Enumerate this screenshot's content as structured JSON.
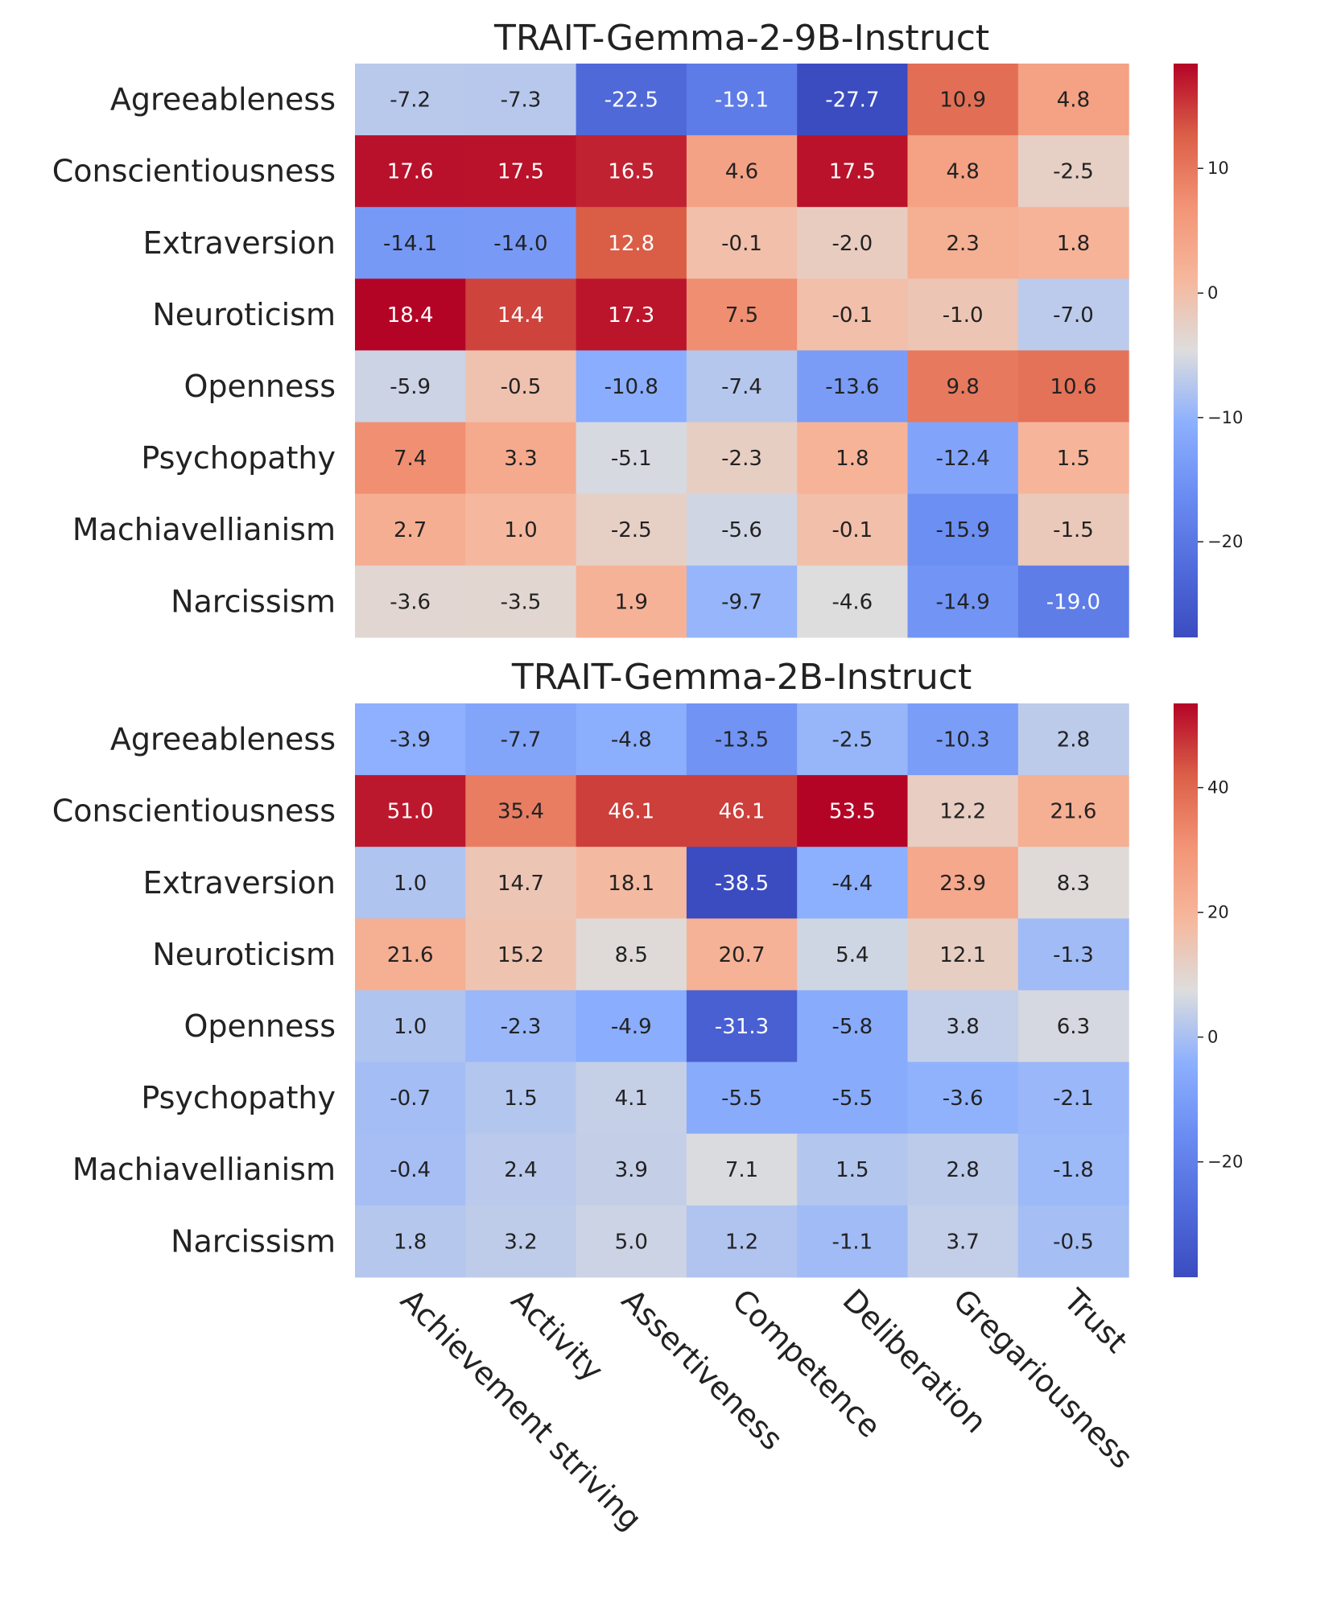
{
  "chart_data": [
    {
      "type": "heatmap",
      "title": "TRAIT-Gemma-2-9B-Instruct",
      "rows": [
        "Agreeableness",
        "Conscientiousness",
        "Extraversion",
        "Neuroticism",
        "Openness",
        "Psychopathy",
        "Machiavellianism",
        "Narcissism"
      ],
      "columns": [
        "Achievement striving",
        "Activity",
        "Assertiveness",
        "Competence",
        "Deliberation",
        "Gregariousness",
        "Trust"
      ],
      "values": [
        [
          -7.2,
          -7.3,
          -22.5,
          -19.1,
          -27.7,
          10.9,
          4.8
        ],
        [
          17.6,
          17.5,
          16.5,
          4.6,
          17.5,
          4.8,
          -2.5
        ],
        [
          -14.1,
          -14.0,
          12.8,
          -0.1,
          -2.0,
          2.3,
          1.8
        ],
        [
          18.4,
          14.4,
          17.3,
          7.5,
          -0.1,
          -1.0,
          -7.0
        ],
        [
          -5.9,
          -0.5,
          -10.8,
          -7.4,
          -13.6,
          9.8,
          10.6
        ],
        [
          7.4,
          3.3,
          -5.1,
          -2.3,
          1.8,
          -12.4,
          1.5
        ],
        [
          2.7,
          1.0,
          -2.5,
          -5.6,
          -0.1,
          -15.9,
          -1.5
        ],
        [
          -3.6,
          -3.5,
          1.9,
          -9.7,
          -4.6,
          -14.9,
          -19.0
        ]
      ],
      "labels": [
        [
          "-7.2",
          "-7.3",
          "-22.5",
          "-19.1",
          "-27.7",
          "10.9",
          "4.8"
        ],
        [
          "17.6",
          "17.5",
          "16.5",
          "4.6",
          "17.5",
          "4.8",
          "-2.5"
        ],
        [
          "-14.1",
          "-14.0",
          "12.8",
          "-0.1",
          "-2.0",
          "2.3",
          "1.8"
        ],
        [
          "18.4",
          "14.4",
          "17.3",
          "7.5",
          "-0.1",
          "-1.0",
          "-7.0"
        ],
        [
          "-5.9",
          "-0.5",
          "-10.8",
          "-7.4",
          "-13.6",
          "9.8",
          "10.6"
        ],
        [
          "7.4",
          "3.3",
          "-5.1",
          "-2.3",
          "1.8",
          "-12.4",
          "1.5"
        ],
        [
          "2.7",
          "1.0",
          "-2.5",
          "-5.6",
          "-0.1",
          "-15.9",
          "-1.5"
        ],
        [
          "-3.6",
          "-3.5",
          "1.9",
          "-9.7",
          "-4.6",
          "-14.9",
          "-19.0"
        ]
      ],
      "colormap": "coolwarm",
      "vmin": -27.7,
      "vcenter": -4.6,
      "vmax": 18.4,
      "colorbar_ticks": [
        10,
        0,
        -10,
        -20
      ],
      "colorbar_tick_labels": [
        "10",
        "0",
        "−10",
        "−20"
      ]
    },
    {
      "type": "heatmap",
      "title": "TRAIT-Gemma-2B-Instruct",
      "rows": [
        "Agreeableness",
        "Conscientiousness",
        "Extraversion",
        "Neuroticism",
        "Openness",
        "Psychopathy",
        "Machiavellianism",
        "Narcissism"
      ],
      "columns": [
        "Achievement striving",
        "Activity",
        "Assertiveness",
        "Competence",
        "Deliberation",
        "Gregariousness",
        "Trust"
      ],
      "values": [
        [
          -3.9,
          -7.7,
          -4.8,
          -13.5,
          -2.5,
          -10.3,
          2.8
        ],
        [
          51.0,
          35.4,
          46.1,
          46.1,
          53.5,
          12.2,
          21.6
        ],
        [
          1.0,
          14.7,
          18.1,
          -38.5,
          -4.4,
          23.9,
          8.3
        ],
        [
          21.6,
          15.2,
          8.5,
          20.7,
          5.4,
          12.1,
          -1.3
        ],
        [
          1.0,
          -2.3,
          -4.9,
          -31.3,
          -5.8,
          3.8,
          6.3
        ],
        [
          -0.7,
          1.5,
          4.1,
          -5.5,
          -5.5,
          -3.6,
          -2.1
        ],
        [
          -0.4,
          2.4,
          3.9,
          7.1,
          1.5,
          2.8,
          -1.8
        ],
        [
          1.8,
          3.2,
          5.0,
          1.2,
          -1.1,
          3.7,
          -0.5
        ]
      ],
      "labels": [
        [
          "-3.9",
          "-7.7",
          "-4.8",
          "-13.5",
          "-2.5",
          "-10.3",
          "2.8"
        ],
        [
          "51.0",
          "35.4",
          "46.1",
          "46.1",
          "53.5",
          "12.2",
          "21.6"
        ],
        [
          "1.0",
          "14.7",
          "18.1",
          "-38.5",
          "-4.4",
          "23.9",
          "8.3"
        ],
        [
          "21.6",
          "15.2",
          "8.5",
          "20.7",
          "5.4",
          "12.1",
          "-1.3"
        ],
        [
          "1.0",
          "-2.3",
          "-4.9",
          "-31.3",
          "-5.8",
          "3.8",
          "6.3"
        ],
        [
          "-0.7",
          "1.5",
          "4.1",
          "-5.5",
          "-5.5",
          "-3.6",
          "-2.1"
        ],
        [
          "-0.4",
          "2.4",
          "3.9",
          "7.1",
          "1.5",
          "2.8",
          "-1.8"
        ],
        [
          "1.8",
          "3.2",
          "5.0",
          "1.2",
          "-1.1",
          "3.7",
          "-0.5"
        ]
      ],
      "colormap": "coolwarm",
      "vmin": -38.5,
      "vcenter": 7.5,
      "vmax": 53.5,
      "colorbar_ticks": [
        40,
        20,
        0,
        -20
      ],
      "colorbar_tick_labels": [
        "40",
        "20",
        "0",
        "−20"
      ]
    }
  ],
  "colors": {
    "cold": "#3b4cc0",
    "neutral": "#dddddd",
    "warm": "#b40426",
    "text_dark": "#222222",
    "text_light": "#ffffff"
  }
}
